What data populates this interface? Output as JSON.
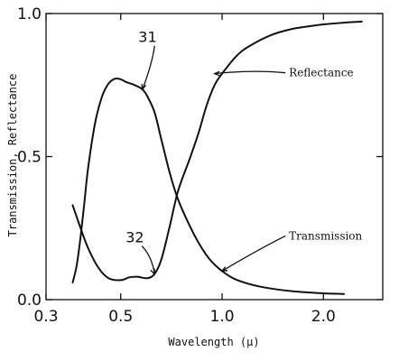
{
  "chart_data": {
    "type": "line",
    "x_scale": "log",
    "xlim": [
      0.3,
      3.0
    ],
    "ylim": [
      0.0,
      1.0
    ],
    "grid": false,
    "xlabel": "Wavelength (μ)",
    "ylabel": "Transmission, Reflectance",
    "x_ticks": [
      {
        "value": 0.3,
        "label": "0.3"
      },
      {
        "value": 0.5,
        "label": "0.5"
      },
      {
        "value": 1.0,
        "label": "1.0"
      },
      {
        "value": 2.0,
        "label": "2.0"
      }
    ],
    "y_ticks": [
      {
        "value": 0.0,
        "label": "0.0"
      },
      {
        "value": 0.5,
        "label": "0.5"
      },
      {
        "value": 1.0,
        "label": "1.0"
      }
    ],
    "series": [
      {
        "id": "transmission",
        "label": "Transmission",
        "ref": "32",
        "points": [
          [
            0.36,
            0.33
          ],
          [
            0.38,
            0.25
          ],
          [
            0.4,
            0.18
          ],
          [
            0.43,
            0.11
          ],
          [
            0.46,
            0.075
          ],
          [
            0.5,
            0.068
          ],
          [
            0.53,
            0.078
          ],
          [
            0.56,
            0.08
          ],
          [
            0.6,
            0.075
          ],
          [
            0.63,
            0.09
          ],
          [
            0.66,
            0.14
          ],
          [
            0.7,
            0.26
          ],
          [
            0.74,
            0.38
          ],
          [
            0.8,
            0.49
          ],
          [
            0.85,
            0.58
          ],
          [
            0.9,
            0.68
          ],
          [
            0.95,
            0.75
          ],
          [
            1.0,
            0.79
          ],
          [
            1.1,
            0.85
          ],
          [
            1.2,
            0.885
          ],
          [
            1.4,
            0.925
          ],
          [
            1.6,
            0.945
          ],
          [
            1.8,
            0.955
          ],
          [
            2.0,
            0.962
          ],
          [
            2.3,
            0.968
          ],
          [
            2.6,
            0.972
          ]
        ]
      },
      {
        "id": "reflectance",
        "label": "Reflectance",
        "ref": "31",
        "points": [
          [
            0.36,
            0.06
          ],
          [
            0.37,
            0.12
          ],
          [
            0.38,
            0.22
          ],
          [
            0.39,
            0.34
          ],
          [
            0.4,
            0.46
          ],
          [
            0.42,
            0.62
          ],
          [
            0.44,
            0.71
          ],
          [
            0.46,
            0.755
          ],
          [
            0.48,
            0.772
          ],
          [
            0.5,
            0.77
          ],
          [
            0.52,
            0.76
          ],
          [
            0.55,
            0.75
          ],
          [
            0.58,
            0.735
          ],
          [
            0.6,
            0.71
          ],
          [
            0.63,
            0.655
          ],
          [
            0.66,
            0.56
          ],
          [
            0.7,
            0.44
          ],
          [
            0.74,
            0.35
          ],
          [
            0.8,
            0.26
          ],
          [
            0.86,
            0.19
          ],
          [
            0.92,
            0.14
          ],
          [
            1.0,
            0.1
          ],
          [
            1.1,
            0.07
          ],
          [
            1.3,
            0.045
          ],
          [
            1.6,
            0.03
          ],
          [
            2.0,
            0.022
          ],
          [
            2.3,
            0.02
          ]
        ]
      }
    ],
    "annotations": [
      {
        "text": "Reflectance",
        "x": 1.6,
        "y": 0.78,
        "points_to": [
          0.95,
          0.79
        ]
      },
      {
        "text": "Transmission",
        "x": 1.6,
        "y": 0.21,
        "points_to": [
          1.0,
          0.1
        ]
      },
      {
        "text": "31",
        "x": 0.6,
        "y": 0.9,
        "points_to": [
          0.58,
          0.735
        ]
      },
      {
        "text": "32",
        "x": 0.55,
        "y": 0.2,
        "points_to": [
          0.63,
          0.09
        ]
      }
    ]
  }
}
